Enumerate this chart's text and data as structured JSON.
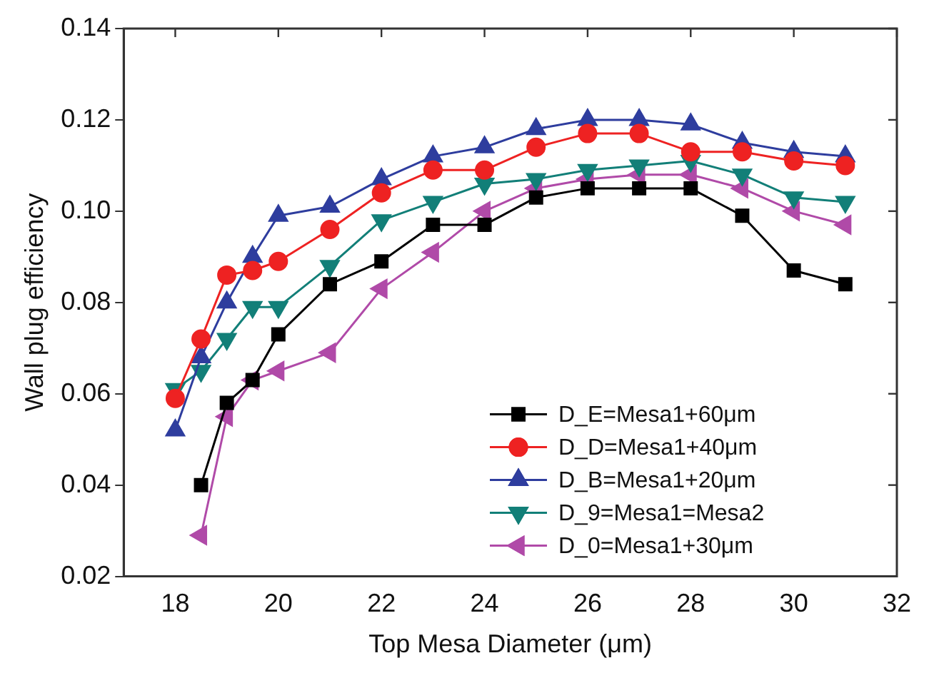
{
  "chart_data": {
    "type": "line",
    "xlabel": "Top Mesa Diameter (μm)",
    "ylabel": "Wall plug efficiency",
    "x": [
      18,
      18.5,
      19,
      19.5,
      20,
      21,
      22,
      23,
      24,
      25,
      26,
      27,
      28,
      29,
      30,
      31
    ],
    "xlim": [
      17,
      32
    ],
    "xticks": [
      18,
      20,
      22,
      24,
      26,
      28,
      30,
      32
    ],
    "ylim": [
      0.02,
      0.14
    ],
    "yticks": [
      {
        "value": 0.02,
        "label": "0.02"
      },
      {
        "value": 0.04,
        "label": "0.04"
      },
      {
        "value": 0.06,
        "label": "0.06"
      },
      {
        "value": 0.08,
        "label": "0.08"
      },
      {
        "value": 0.1,
        "label": "0.10"
      },
      {
        "value": 0.12,
        "label": "0.12"
      },
      {
        "value": 0.14,
        "label": "0.14"
      }
    ],
    "grid": false,
    "legend": "bottom right",
    "line_style": "solid",
    "series": [
      {
        "name": "D_E=Mesa1+60μm",
        "color": "#000000",
        "marker": "square",
        "values": [
          null,
          0.04,
          0.058,
          0.063,
          0.073,
          0.084,
          0.089,
          0.097,
          0.097,
          0.103,
          0.105,
          0.105,
          0.105,
          0.099,
          0.087,
          0.084
        ]
      },
      {
        "name": "D_D=Mesa1+40μm",
        "color": "#ee2222",
        "marker": "circle",
        "values": [
          0.059,
          0.072,
          0.086,
          0.087,
          0.089,
          0.096,
          0.104,
          0.109,
          0.109,
          0.114,
          0.117,
          0.117,
          0.113,
          0.113,
          0.111,
          0.11
        ]
      },
      {
        "name": "D_B=Mesa1+20μm",
        "color": "#2e3d9e",
        "marker": "triangle",
        "values": [
          0.052,
          0.068,
          0.08,
          0.09,
          0.099,
          0.101,
          0.107,
          0.112,
          0.114,
          0.118,
          0.12,
          0.12,
          0.119,
          0.115,
          0.113,
          0.112
        ]
      },
      {
        "name": "D_9=Mesa1=Mesa2",
        "color": "#127f78",
        "marker": "triangle-down",
        "values": [
          0.061,
          0.065,
          0.072,
          0.079,
          0.079,
          0.088,
          0.098,
          0.102,
          0.106,
          0.107,
          0.109,
          0.11,
          0.111,
          0.108,
          0.103,
          0.102
        ]
      },
      {
        "name": "D_0=Mesa1+30μm",
        "color": "#b04aa8",
        "marker": "triangle-left",
        "values": [
          null,
          0.029,
          0.055,
          0.063,
          0.065,
          0.069,
          0.083,
          0.091,
          0.1,
          0.105,
          0.107,
          0.108,
          0.108,
          0.105,
          0.1,
          0.097
        ]
      }
    ]
  }
}
